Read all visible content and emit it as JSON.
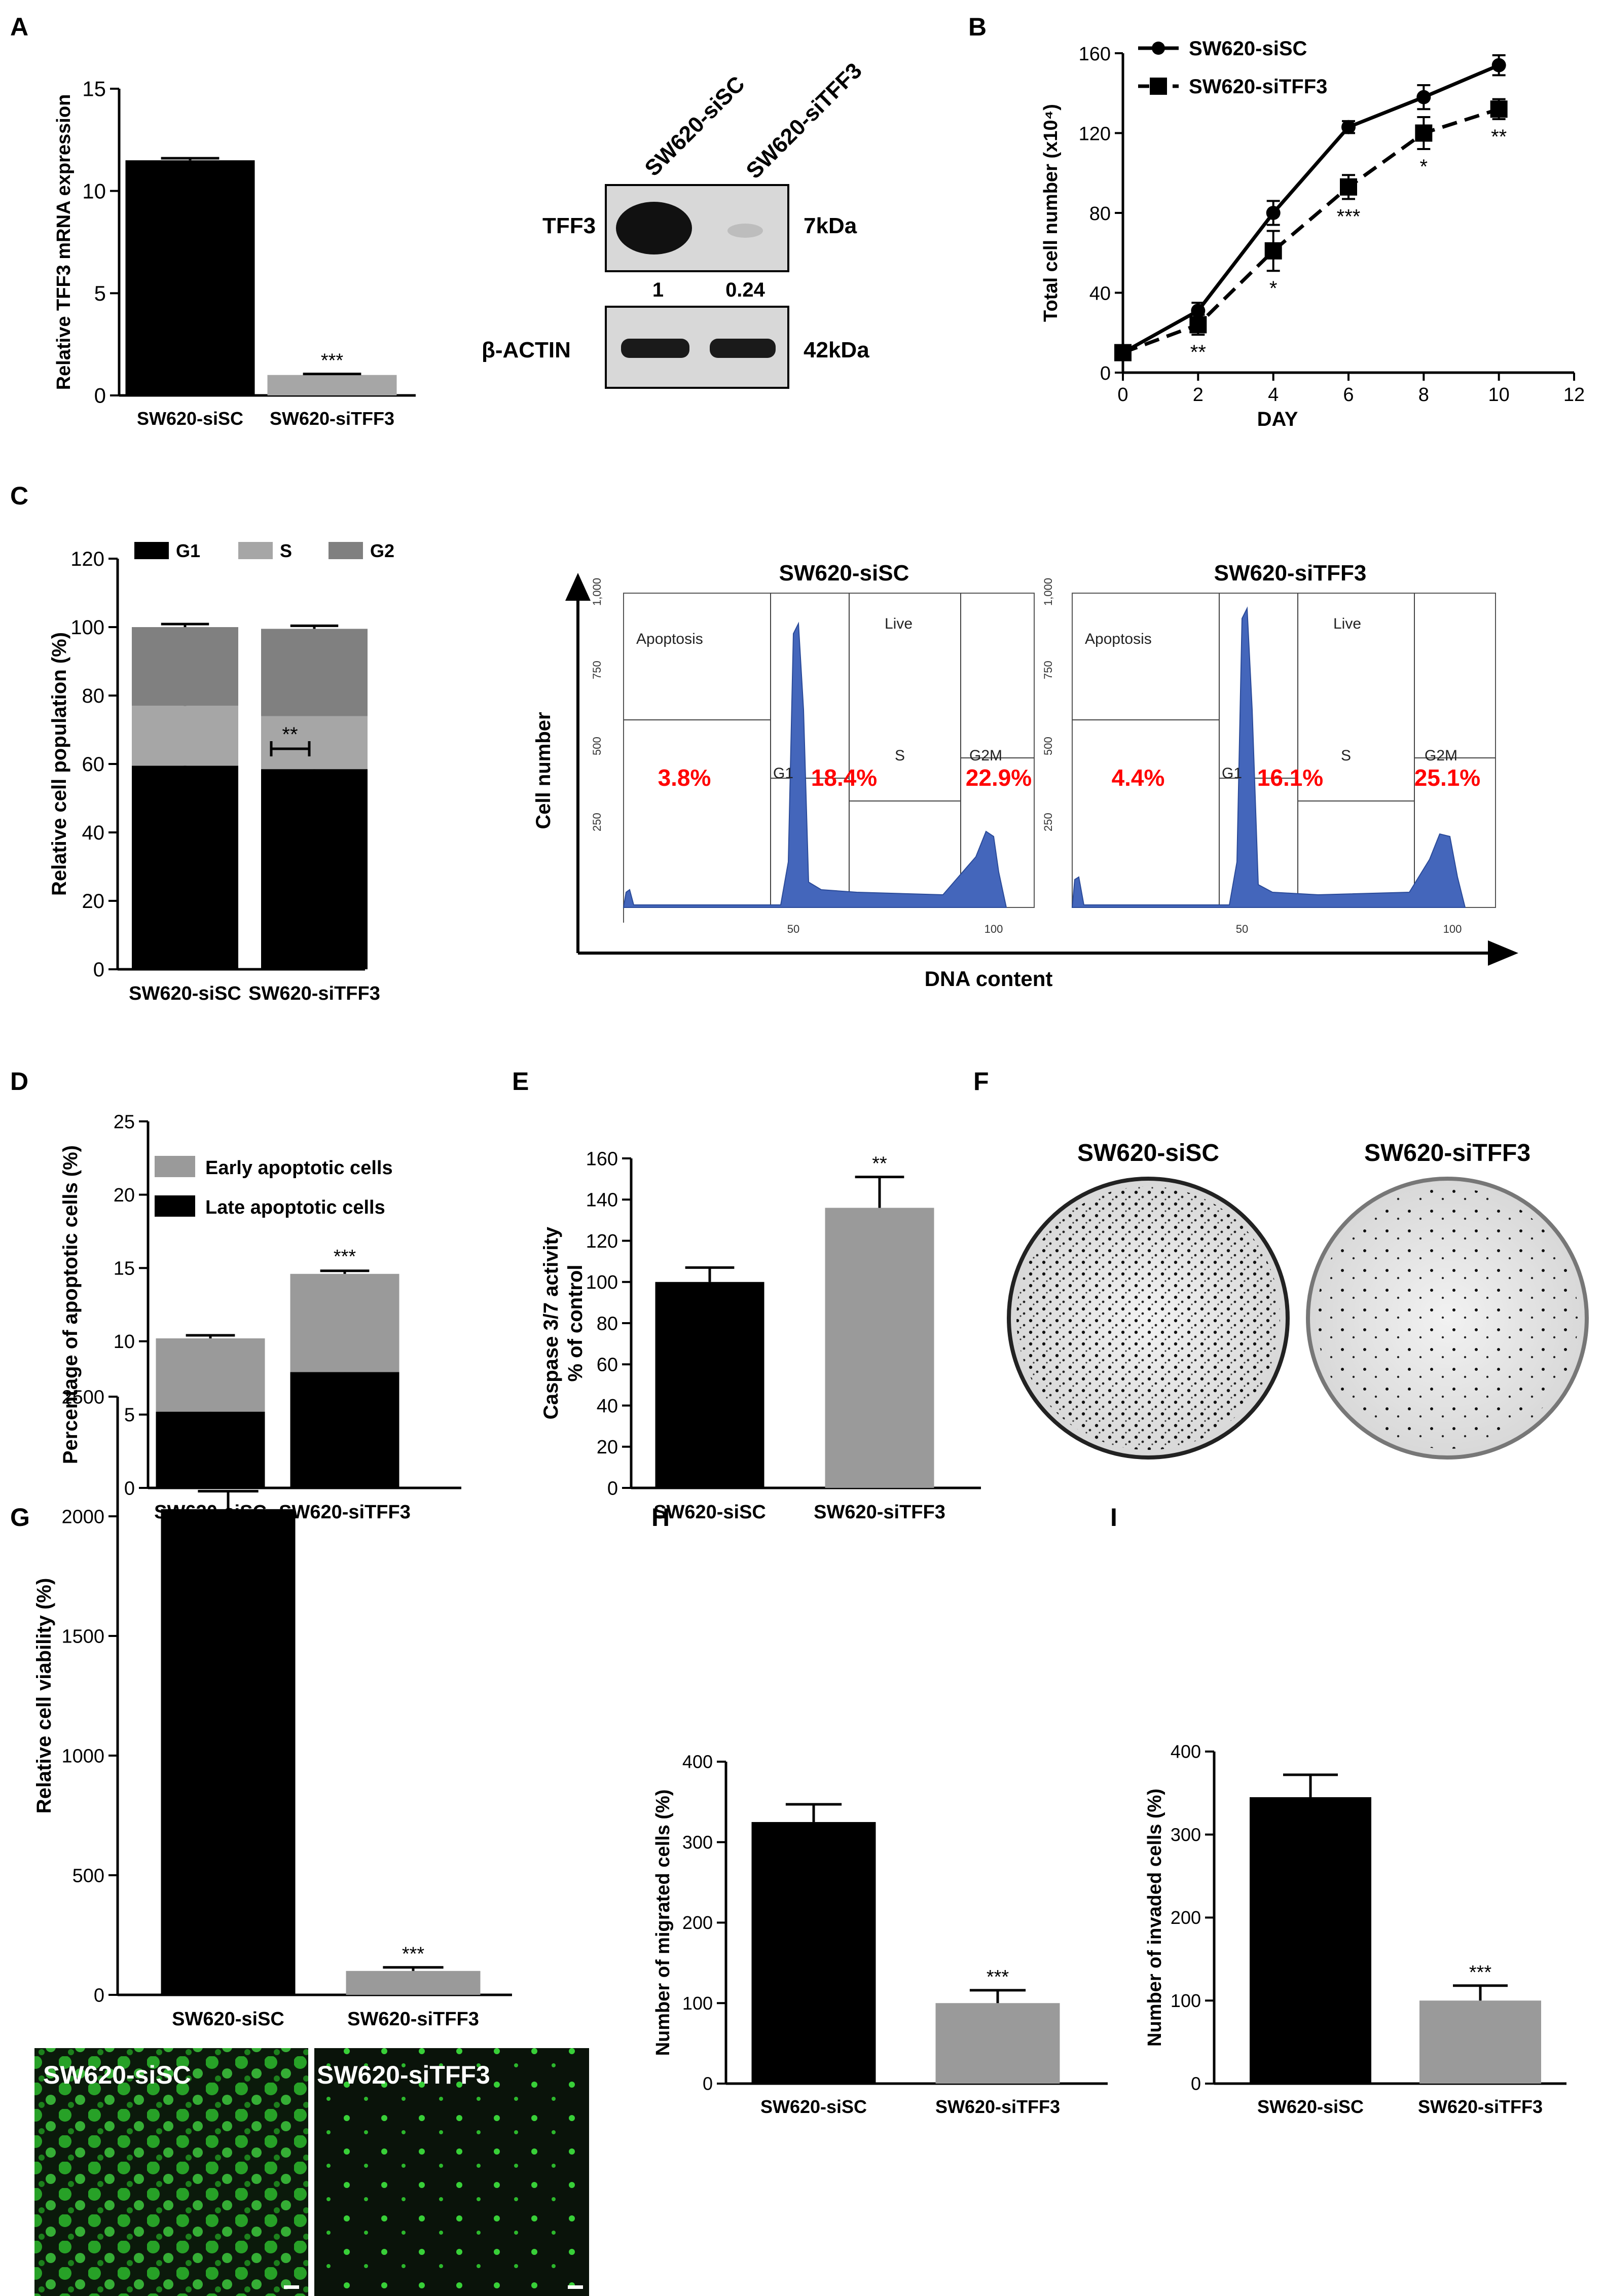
{
  "colors": {
    "black": "#000000",
    "light_gray": "#a6a6a6",
    "mid_gray": "#9a9a9a",
    "dark_gray": "#808080",
    "flow_blue": "#4466bb",
    "flow_red": "#ff0000",
    "fluor_green": "#28c828"
  },
  "panels": {
    "A": {
      "label": "A",
      "blot": {
        "lanes": [
          "SW620-siSC",
          "SW620-siTFF3"
        ],
        "proteins": [
          {
            "name": "TFF3",
            "size": "7kDa",
            "quant": [
              "1",
              "0.24"
            ]
          },
          {
            "name": "β-ACTIN",
            "size": "42kDa"
          }
        ]
      }
    },
    "B": {
      "label": "B"
    },
    "C": {
      "label": "C",
      "stats": {
        "bracket_sig": "**"
      },
      "flow": {
        "ylabel": "Cell number",
        "xlabel": "DNA content",
        "yticks": [
          "250",
          "500",
          "750",
          "1,000"
        ],
        "xticks": [
          "50",
          "100"
        ],
        "plots": [
          {
            "title": "SW620-siSC",
            "gates": [
              "Apoptosis",
              "G1",
              "Live",
              "S",
              "G2M"
            ],
            "values": [
              "3.8%",
              "18.4%",
              "22.9%"
            ]
          },
          {
            "title": "SW620-siTFF3",
            "gates": [
              "Apoptosis",
              "G1",
              "Live",
              "S",
              "G2M"
            ],
            "values": [
              "4.4%",
              "16.1%",
              "25.1%"
            ]
          }
        ]
      }
    },
    "D": {
      "label": "D"
    },
    "E": {
      "label": "E"
    },
    "F": {
      "label": "F",
      "plates": [
        "SW620-siSC",
        "SW620-siTFF3"
      ]
    },
    "G": {
      "label": "G",
      "images": [
        "SW620-siSC",
        "SW620-siTFF3"
      ]
    },
    "H": {
      "label": "H"
    },
    "I": {
      "label": "I"
    }
  },
  "chart_data": [
    {
      "id": "A",
      "type": "bar",
      "categories": [
        "SW620-siSC",
        "SW620-siTFF3"
      ],
      "values": [
        11.5,
        1.0
      ],
      "errors": [
        0.1,
        0.05
      ],
      "significance": [
        "",
        "***"
      ],
      "ylabel": "Relative TFF3 mRNA expression",
      "ylim": [
        0,
        15
      ],
      "yticks": [
        0,
        5,
        10,
        15
      ],
      "bar_colors": [
        "black",
        "light_gray"
      ]
    },
    {
      "id": "B",
      "type": "line",
      "x": [
        0,
        2,
        4,
        6,
        8,
        10
      ],
      "series": [
        {
          "name": "SW620-siSC",
          "values": [
            10,
            31,
            80,
            123,
            138,
            154
          ],
          "errors": [
            2,
            4,
            6,
            3,
            6,
            5
          ],
          "marker": "circle",
          "dash": false
        },
        {
          "name": "SW620-siTFF3",
          "values": [
            10,
            24,
            61,
            93,
            120,
            132
          ],
          "errors": [
            2,
            5,
            10,
            6,
            8,
            5
          ],
          "marker": "square",
          "dash": true
        }
      ],
      "significance": [
        "",
        "**",
        "*",
        "***",
        "*",
        "**"
      ],
      "xlabel": "DAY",
      "ylabel": "Total cell number (x10⁴)",
      "xlim": [
        0,
        12
      ],
      "ylim": [
        0,
        160
      ],
      "xticks": [
        0,
        2,
        4,
        6,
        8,
        10,
        12
      ],
      "yticks": [
        0,
        40,
        80,
        120,
        160
      ]
    },
    {
      "id": "C",
      "type": "bar",
      "stacked": true,
      "categories": [
        "SW620-siSC",
        "SW620-siTFF3"
      ],
      "series": [
        {
          "name": "G1",
          "values": [
            59.5,
            58.5
          ],
          "color": "black"
        },
        {
          "name": "S",
          "values": [
            17.5,
            15.5
          ],
          "color": "light_gray"
        },
        {
          "name": "G2",
          "values": [
            23.0,
            25.5
          ],
          "color": "dark_gray"
        }
      ],
      "ylabel": "Relative cell population (%)",
      "ylim": [
        0,
        120
      ],
      "yticks": [
        0,
        20,
        40,
        60,
        80,
        100,
        120
      ]
    },
    {
      "id": "D",
      "type": "bar",
      "stacked": true,
      "categories": [
        "SW620-siSC",
        "SW620-siTFF3"
      ],
      "series": [
        {
          "name": "Late apoptotic cells",
          "values": [
            5.2,
            7.9
          ],
          "color": "black"
        },
        {
          "name": "Early apoptotic cells",
          "values": [
            5.0,
            6.7
          ],
          "color": "mid_gray"
        }
      ],
      "significance": [
        "",
        "***"
      ],
      "ylabel": "Percentage of apoptotic cells (%)",
      "ylim": [
        0,
        25
      ],
      "yticks": [
        0,
        5,
        10,
        15,
        20,
        25
      ]
    },
    {
      "id": "E",
      "type": "bar",
      "categories": [
        "SW620-siSC",
        "SW620-siTFF3"
      ],
      "values": [
        100,
        136
      ],
      "errors": [
        7,
        15
      ],
      "significance": [
        "",
        "**"
      ],
      "ylabel": "Caspase 3/7 activity",
      "ylabel2": "% of control",
      "ylim": [
        0,
        160
      ],
      "yticks": [
        0,
        20,
        40,
        60,
        80,
        100,
        120,
        140,
        160
      ],
      "bar_colors": [
        "black",
        "mid_gray"
      ]
    },
    {
      "id": "G",
      "type": "bar",
      "categories": [
        "SW620-siSC",
        "SW620-siTFF3"
      ],
      "values": [
        2030,
        100
      ],
      "errors": [
        75,
        15
      ],
      "significance": [
        "",
        "***"
      ],
      "ylabel": "Relative cell viability (%)",
      "ylim": [
        0,
        2500
      ],
      "yticks": [
        0,
        500,
        1000,
        1500,
        2000,
        2500
      ],
      "bar_colors": [
        "black",
        "mid_gray"
      ]
    },
    {
      "id": "H",
      "type": "bar",
      "categories": [
        "SW620-siSC",
        "SW620-siTFF3"
      ],
      "values": [
        325,
        100
      ],
      "errors": [
        22,
        16
      ],
      "significance": [
        "",
        "***"
      ],
      "ylabel": "Number of migrated cells (%)",
      "ylim": [
        0,
        400
      ],
      "yticks": [
        0,
        100,
        200,
        300,
        400
      ],
      "bar_colors": [
        "black",
        "mid_gray"
      ]
    },
    {
      "id": "I",
      "type": "bar",
      "categories": [
        "SW620-siSC",
        "SW620-siTFF3"
      ],
      "values": [
        345,
        100
      ],
      "errors": [
        27,
        18
      ],
      "significance": [
        "",
        "***"
      ],
      "ylabel": "Number of invaded cells (%)",
      "ylim": [
        0,
        400
      ],
      "yticks": [
        0,
        100,
        200,
        300,
        400
      ],
      "bar_colors": [
        "black",
        "mid_gray"
      ]
    }
  ]
}
